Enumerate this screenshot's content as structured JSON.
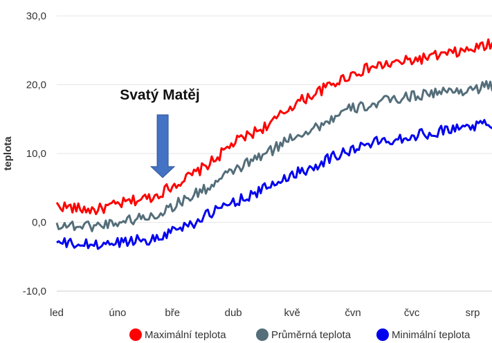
{
  "chart_data": {
    "type": "line",
    "ylabel": "teplota",
    "ylim": [
      -10,
      30
    ],
    "yticks": [
      {
        "value": -10,
        "label": "-10,0"
      },
      {
        "value": 0,
        "label": "0,0"
      },
      {
        "value": 10,
        "label": "10,0"
      },
      {
        "value": 20,
        "label": "20,0"
      },
      {
        "value": 30,
        "label": "30,0"
      }
    ],
    "x_tick_days": [
      0,
      31,
      59,
      90,
      120,
      151,
      181,
      212
    ],
    "x_tick_labels": [
      "led",
      "úno",
      "bře",
      "dub",
      "kvě",
      "čvn",
      "čvc",
      "srp"
    ],
    "x_range_days": [
      0,
      226
    ],
    "grid": true,
    "legend_position": "bottom",
    "annotation": {
      "text": "Svatý Matěj",
      "day": 54,
      "value": 6.5
    },
    "series": [
      {
        "name": "Maximální teplota",
        "color": "#ff0000",
        "x_days": [
          0,
          10,
          20,
          30,
          40,
          50,
          60,
          70,
          80,
          90,
          100,
          110,
          120,
          130,
          140,
          150,
          160,
          170,
          180,
          190,
          200,
          210,
          220,
          226
        ],
        "values": [
          2.5,
          2.0,
          1.8,
          2.5,
          3.2,
          3.8,
          5.5,
          7.0,
          9.0,
          11.5,
          13.0,
          14.5,
          17.0,
          18.5,
          20.0,
          21.5,
          22.5,
          23.0,
          23.5,
          24.0,
          24.5,
          25.0,
          25.8,
          25.5
        ]
      },
      {
        "name": "Průměrná teplota",
        "color": "#546e7a",
        "x_days": [
          0,
          10,
          20,
          30,
          40,
          50,
          60,
          70,
          80,
          90,
          100,
          110,
          120,
          130,
          140,
          150,
          160,
          170,
          180,
          190,
          200,
          210,
          220,
          226
        ],
        "values": [
          -0.3,
          -0.5,
          -0.5,
          0.0,
          0.5,
          1.0,
          2.5,
          4.0,
          5.5,
          7.5,
          9.0,
          10.5,
          12.5,
          13.5,
          15.0,
          16.5,
          17.0,
          17.8,
          18.3,
          18.8,
          19.0,
          19.3,
          19.8,
          19.5
        ]
      },
      {
        "name": "Minimální teplota",
        "color": "#0000ee",
        "x_days": [
          0,
          10,
          20,
          30,
          40,
          50,
          60,
          70,
          80,
          90,
          100,
          110,
          120,
          130,
          140,
          150,
          160,
          170,
          180,
          190,
          200,
          210,
          220,
          226
        ],
        "values": [
          -3.0,
          -3.2,
          -3.3,
          -3.0,
          -2.5,
          -2.5,
          -1.0,
          0.0,
          1.5,
          3.0,
          4.0,
          5.5,
          7.0,
          8.0,
          9.5,
          10.5,
          11.5,
          12.0,
          12.5,
          13.0,
          13.5,
          14.0,
          14.2,
          14.0
        ]
      }
    ]
  }
}
